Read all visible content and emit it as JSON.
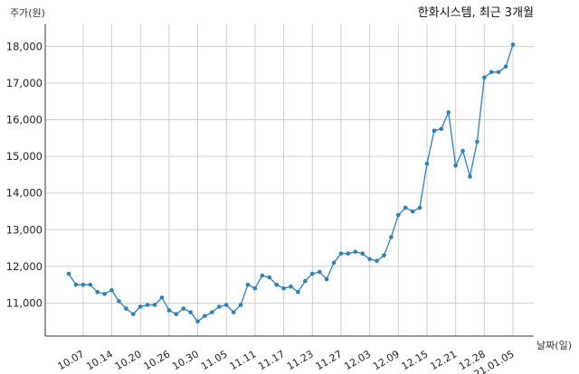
{
  "chart_data": {
    "type": "line",
    "title": "한화시스템, 최근 3개월",
    "ylabel": "주가(원)",
    "xlabel": "날짜(일)",
    "ylim": [
      10100,
      18600
    ],
    "yticks": [
      11000,
      12000,
      13000,
      14000,
      15000,
      16000,
      17000,
      18000
    ],
    "ytick_labels": [
      "11,000",
      "12,000",
      "13,000",
      "14,000",
      "15,000",
      "16,000",
      "17,000",
      "18,000"
    ],
    "xtick_labels": [
      "10.07",
      "10.14",
      "10.20",
      "10.26",
      "10.30",
      "11.05",
      "11.11",
      "11.17",
      "11.23",
      "11.27",
      "12.03",
      "12.09",
      "12.15",
      "12.21",
      "12.28",
      "21.01.05"
    ],
    "xtick_positions": [
      2,
      6,
      10,
      14,
      18,
      22,
      26,
      30,
      34,
      38,
      42,
      46,
      50,
      54,
      58,
      62
    ],
    "grid": true,
    "color": "#2e7fb8",
    "values": [
      11800,
      11500,
      11500,
      11500,
      11300,
      11250,
      11350,
      11050,
      10850,
      10700,
      10900,
      10950,
      10950,
      11150,
      10800,
      10700,
      10850,
      10750,
      10500,
      10650,
      10750,
      10900,
      10950,
      10750,
      10950,
      11500,
      11400,
      11750,
      11700,
      11500,
      11400,
      11450,
      11300,
      11600,
      11800,
      11850,
      11650,
      12100,
      12350,
      12350,
      12400,
      12350,
      12200,
      12150,
      12300,
      12800,
      13400,
      13600,
      13500,
      13600,
      14800,
      15700,
      15750,
      16200,
      14750,
      15150,
      14450,
      15400,
      17150,
      17300,
      17300,
      17450,
      18050
    ]
  }
}
